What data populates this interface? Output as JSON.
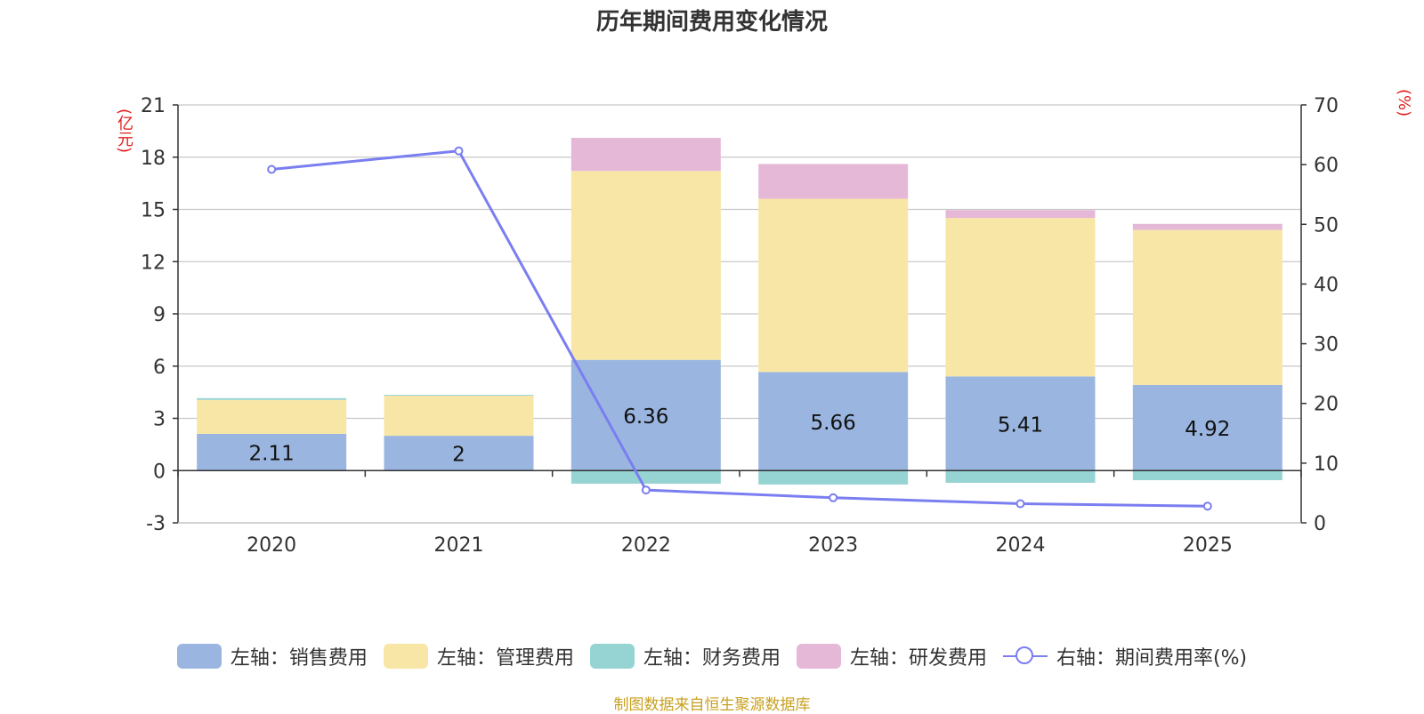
{
  "colors": {
    "sales": "#9ab6e0",
    "admin": "#f8e6a6",
    "finance": "#96d3d3",
    "rd": "#e6b8d8",
    "line": "#7b7ef0",
    "grid": "#c8c8c8",
    "axis": "#333333",
    "unit": "#e02020",
    "source": "#c8a020"
  },
  "chart_data": {
    "type": "bar",
    "title": "历年期间费用变化情况",
    "categories": [
      "2020",
      "2021",
      "2022",
      "2023",
      "2024",
      "2025"
    ],
    "left_axis": {
      "unit": "(亿元)",
      "ylim": [
        -3,
        21
      ],
      "ticks": [
        -3,
        0,
        3,
        6,
        9,
        12,
        15,
        18,
        21
      ]
    },
    "right_axis": {
      "unit": "(%)",
      "ylim": [
        0,
        70
      ],
      "ticks": [
        0,
        10,
        20,
        30,
        40,
        50,
        60,
        70
      ]
    },
    "series": [
      {
        "key": "sales",
        "name": "左轴：销售费用",
        "type": "bar",
        "axis": "left",
        "values": [
          2.11,
          2,
          6.36,
          5.66,
          5.41,
          4.92
        ],
        "labels": [
          "2.11",
          "2",
          "6.36",
          "5.66",
          "5.41",
          "4.92"
        ]
      },
      {
        "key": "admin",
        "name": "左轴：管理费用",
        "type": "bar",
        "axis": "left",
        "values": [
          1.95,
          2.3,
          10.85,
          9.95,
          9.1,
          8.9
        ]
      },
      {
        "key": "finance",
        "name": "左轴：财务费用",
        "type": "bar",
        "axis": "left",
        "values": [
          0.1,
          0.05,
          -0.75,
          -0.8,
          -0.7,
          -0.55
        ]
      },
      {
        "key": "rd",
        "name": "左轴：研发费用",
        "type": "bar",
        "axis": "left",
        "values": [
          0,
          0,
          1.9,
          2.0,
          0.45,
          0.35
        ]
      },
      {
        "key": "line",
        "name": "右轴：期间费用率(%)",
        "type": "line",
        "axis": "right",
        "values": [
          59.2,
          62.3,
          5.5,
          4.2,
          3.2,
          2.8
        ]
      }
    ],
    "grid": true,
    "legend": "bottom",
    "source": "制图数据来自恒生聚源数据库"
  }
}
